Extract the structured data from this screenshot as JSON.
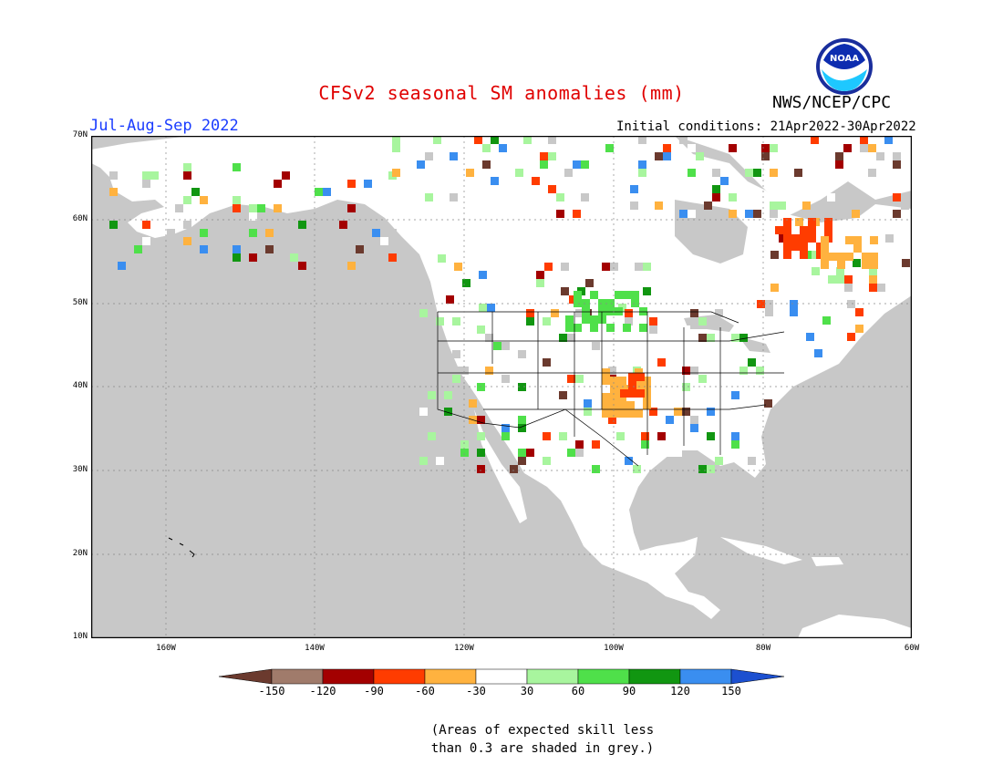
{
  "title": "CFSv2 seasonal SM anomalies (mm)",
  "agency": "NWS/NCEP/CPC",
  "logo_text": "NOAA",
  "season": "Jul-Aug-Sep 2022",
  "initial_conditions": "Initial conditions: 21Apr2022-30Apr2022",
  "lat_labels": [
    "70N",
    "60N",
    "50N",
    "40N",
    "30N",
    "20N",
    "10N"
  ],
  "lon_labels": [
    "160W",
    "140W",
    "120W",
    "100W",
    "80W",
    "60W"
  ],
  "colorbar": {
    "ticks": [
      "-150",
      "-120",
      "-90",
      "-60",
      "-30",
      "30",
      "60",
      "90",
      "120",
      "150"
    ],
    "colors": [
      "#6b3a2e",
      "#a07b6b",
      "#a30000",
      "#ff3c00",
      "#ffb23f",
      "#ffffff",
      "#a8f59e",
      "#4fe04a",
      "#119611",
      "#3a8ef0",
      "#1c50d0"
    ]
  },
  "note_line1": "(Areas of expected skill less",
  "note_line2": "than 0.3 are shaded in grey.)",
  "colors": {
    "ocean": "#c8c8c8",
    "land": "#ffffff",
    "title": "#e00000",
    "season": "#1a3cff"
  }
}
